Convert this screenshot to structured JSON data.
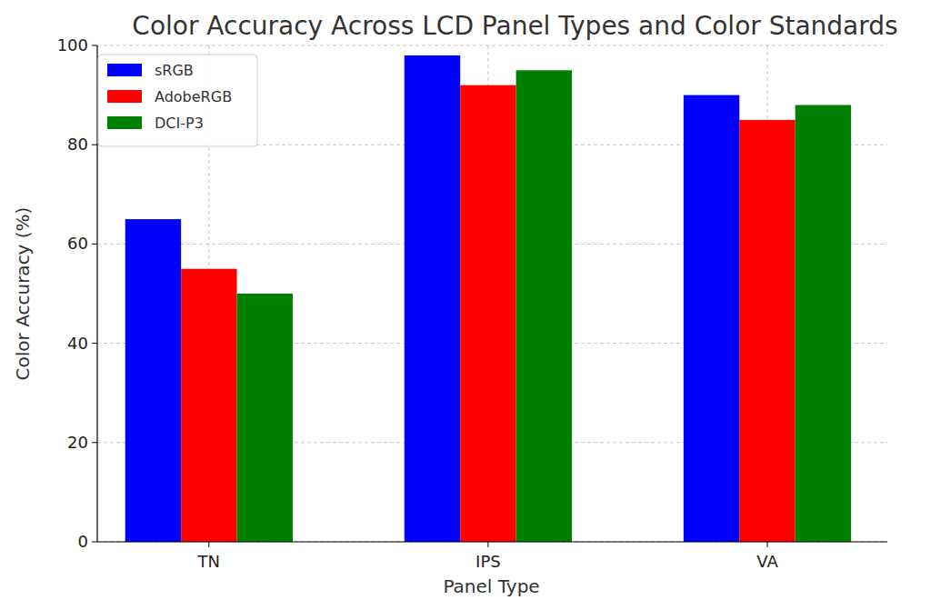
{
  "chart_data": {
    "type": "bar",
    "title": "Color Accuracy Across LCD Panel Types and Color Standards",
    "x_label": "Panel Type",
    "y_label": "Color Accuracy (%)",
    "categories": [
      "TN",
      "IPS",
      "VA"
    ],
    "series": [
      {
        "name": "sRGB",
        "color": "#0000ff",
        "values": [
          65,
          98,
          90
        ]
      },
      {
        "name": "AdobeRGB",
        "color": "#ff0000",
        "values": [
          55,
          92,
          85
        ]
      },
      {
        "name": "DCI-P3",
        "color": "#008000",
        "values": [
          50,
          95,
          88
        ]
      }
    ],
    "ylim": [
      0,
      100
    ],
    "yticks": [
      0,
      20,
      40,
      60,
      80,
      100
    ],
    "grid": true,
    "legend": "upper left"
  }
}
